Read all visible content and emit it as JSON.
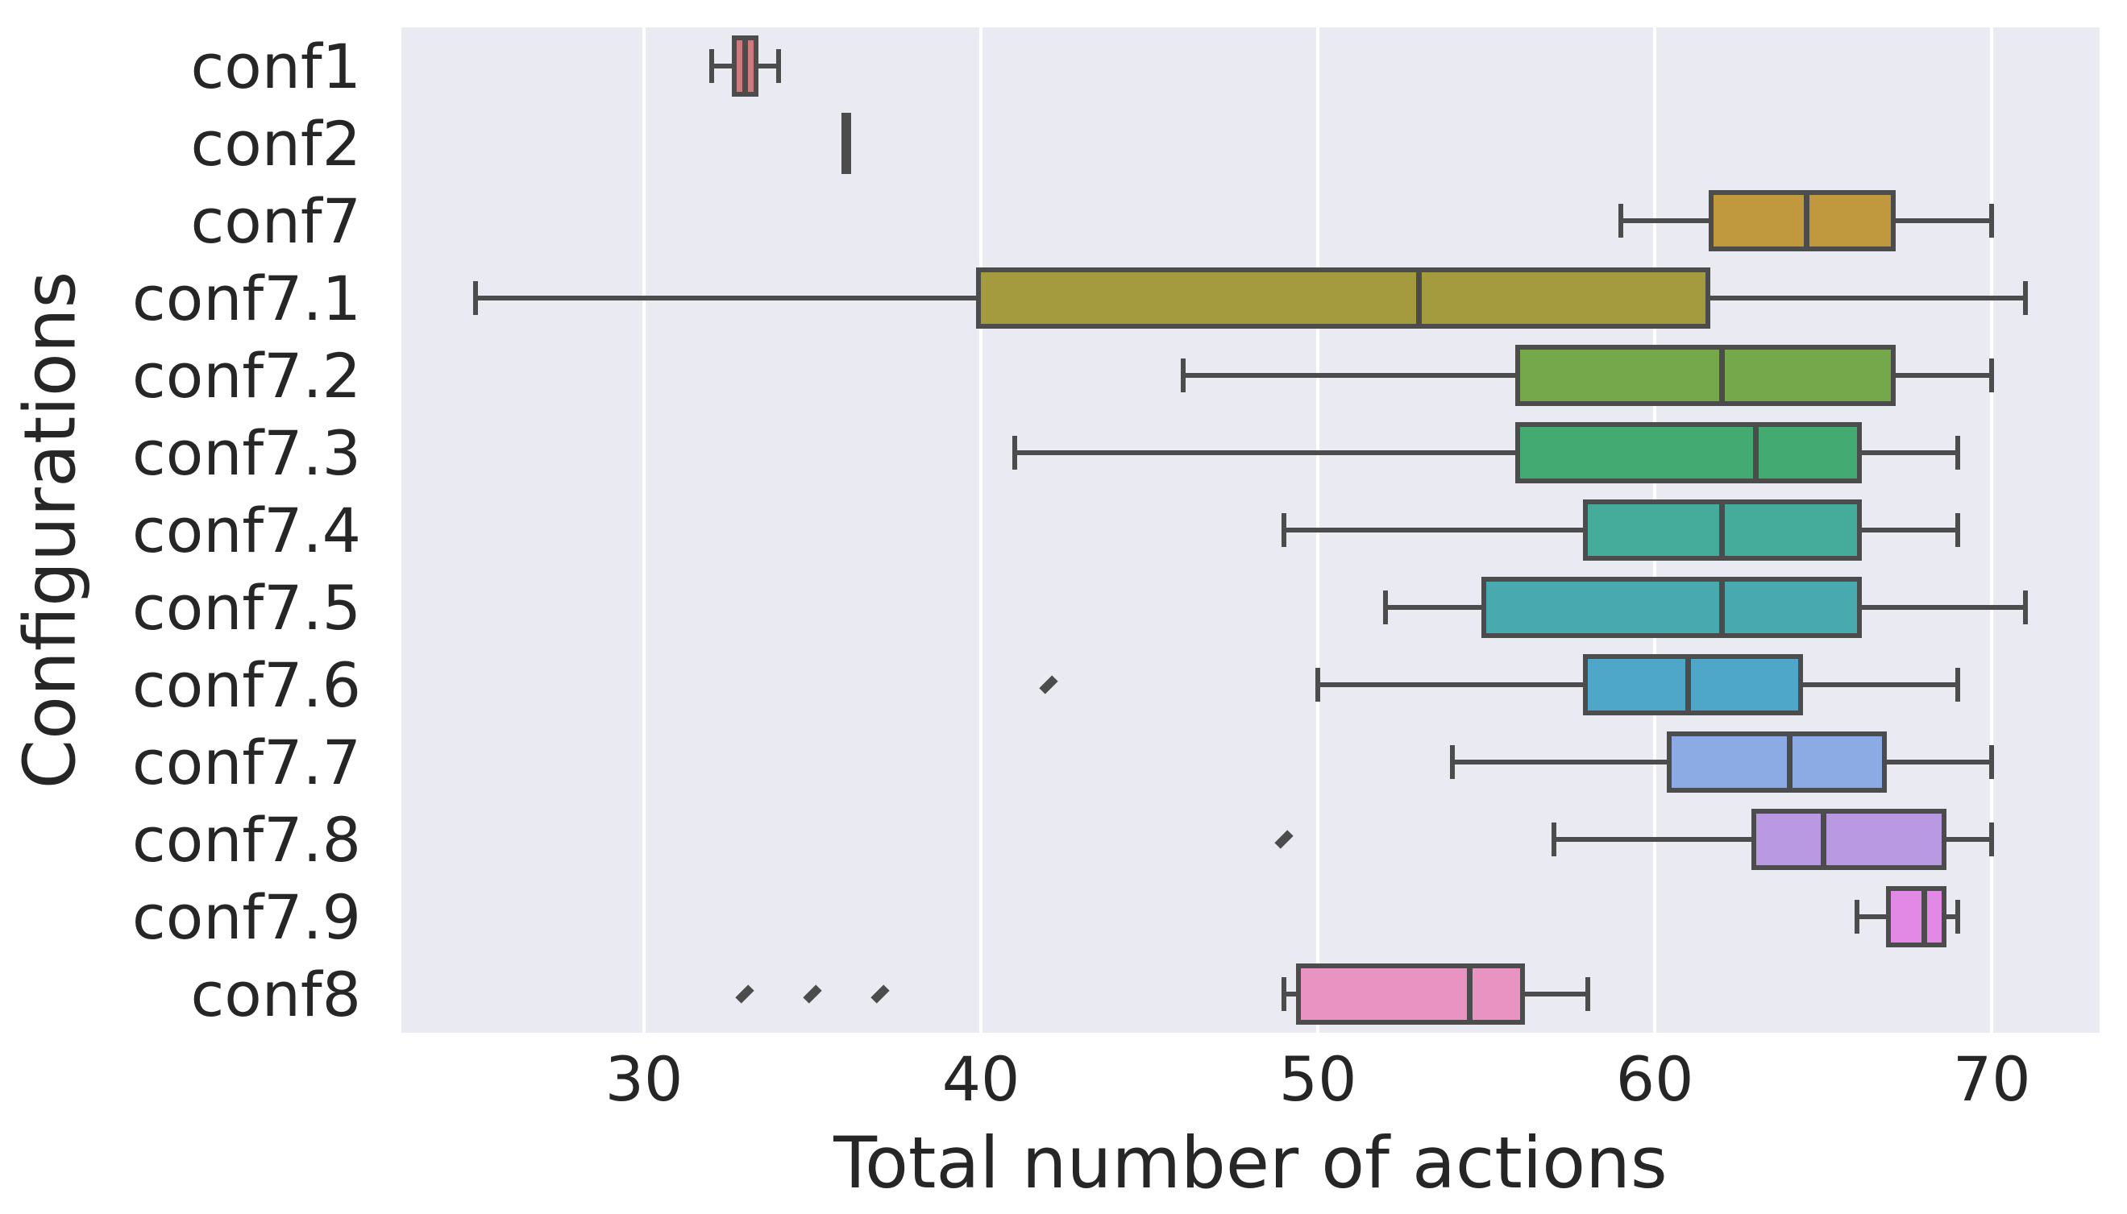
{
  "figure": {
    "xlabel": "Total number of actions",
    "ylabel": "Configurations"
  },
  "style": {
    "plot_bg": "#eaeaf2",
    "grid_color": "#ffffff",
    "line_color": "#4c4c4c",
    "text_color": "#262626"
  },
  "chart_data": {
    "type": "boxplot",
    "orientation": "horizontal",
    "title": "",
    "xlabel": "Total number of actions",
    "ylabel": "Configurations",
    "xlim": [
      22.8,
      73.2
    ],
    "xticks": [
      30,
      40,
      50,
      60,
      70
    ],
    "grid": "vertical white gridlines on light-gray seaborn darkgrid background",
    "legend": "none",
    "categories": [
      "conf1",
      "conf2",
      "conf7",
      "conf7.1",
      "conf7.2",
      "conf7.3",
      "conf7.4",
      "conf7.5",
      "conf7.6",
      "conf7.7",
      "conf7.8",
      "conf7.9",
      "conf8"
    ],
    "series": [
      {
        "label": "conf1",
        "whisker_low": 32,
        "q1": 32.75,
        "median": 33,
        "q3": 33.25,
        "whisker_high": 34,
        "outliers": [],
        "color": "#cc7a7d"
      },
      {
        "label": "conf2",
        "whisker_low": 36,
        "q1": 36,
        "median": 36,
        "q3": 36,
        "whisker_high": 36,
        "outliers": [],
        "color": null
      },
      {
        "label": "conf7",
        "whisker_low": 59,
        "q1": 61.75,
        "median": 64.5,
        "q3": 67,
        "whisker_high": 70,
        "outliers": [],
        "color": "#c0993f"
      },
      {
        "label": "conf7.1",
        "whisker_low": 25,
        "q1": 40,
        "median": 53,
        "q3": 61.5,
        "whisker_high": 71,
        "outliers": [],
        "color": "#a49b3e"
      },
      {
        "label": "conf7.2",
        "whisker_low": 46,
        "q1": 56,
        "median": 62,
        "q3": 67,
        "whisker_high": 70,
        "outliers": [],
        "color": "#74a84a"
      },
      {
        "label": "conf7.3",
        "whisker_low": 41,
        "q1": 56,
        "median": 63,
        "q3": 66,
        "whisker_high": 69,
        "outliers": [],
        "color": "#43aa72"
      },
      {
        "label": "conf7.4",
        "whisker_low": 49,
        "q1": 58,
        "median": 62,
        "q3": 66,
        "whisker_high": 69,
        "outliers": [],
        "color": "#45ab9b"
      },
      {
        "label": "conf7.5",
        "whisker_low": 52,
        "q1": 55,
        "median": 62,
        "q3": 66,
        "whisker_high": 71,
        "outliers": [],
        "color": "#48a9ae"
      },
      {
        "label": "conf7.6",
        "whisker_low": 50,
        "q1": 58,
        "median": 61,
        "q3": 64.25,
        "whisker_high": 69,
        "outliers": [
          42
        ],
        "color": "#4ea6c9"
      },
      {
        "label": "conf7.7",
        "whisker_low": 54,
        "q1": 60.5,
        "median": 64,
        "q3": 66.75,
        "whisker_high": 70,
        "outliers": [],
        "color": "#8cabe4"
      },
      {
        "label": "conf7.8",
        "whisker_low": 57,
        "q1": 63,
        "median": 65,
        "q3": 68.5,
        "whisker_high": 70,
        "outliers": [
          49
        ],
        "color": "#b99ae2"
      },
      {
        "label": "conf7.9",
        "whisker_low": 66,
        "q1": 67,
        "median": 68,
        "q3": 68.5,
        "whisker_high": 69,
        "outliers": [],
        "color": "#e189e4"
      },
      {
        "label": "conf8",
        "whisker_low": 49,
        "q1": 49.5,
        "median": 54.5,
        "q3": 56,
        "whisker_high": 58,
        "outliers": [
          33,
          35,
          37
        ],
        "color": "#e893c2"
      }
    ]
  }
}
